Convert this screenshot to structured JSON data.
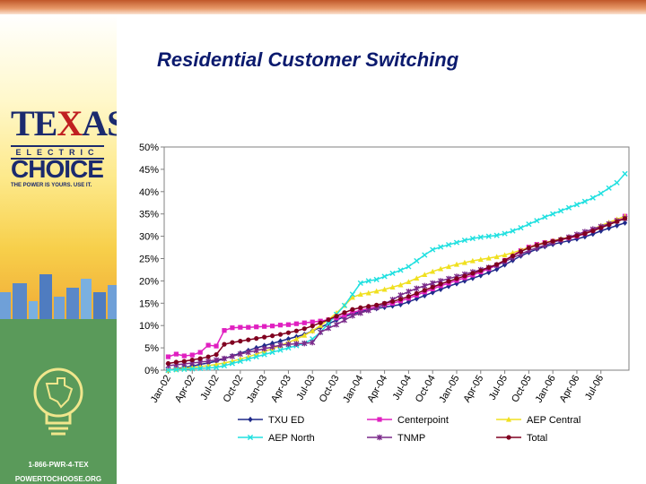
{
  "page": {
    "title": "Residential Customer Switching"
  },
  "sidebar": {
    "logo_texas_1": "TE",
    "logo_texas_x": "X",
    "logo_texas_2": "AS",
    "logo_electric": "ELECTRIC",
    "logo_choice": "CHOICE",
    "logo_tagline": "THE POWER IS YOURS. USE IT.",
    "phone": "1-866-PWR-4-TEX",
    "website": "POWERTOCHOOSE.ORG"
  },
  "chart_data": {
    "type": "line",
    "title": "Residential Customer Switching",
    "xlabel": "",
    "ylabel": "",
    "ylim": [
      0,
      50
    ],
    "y_ticks": [
      "0%",
      "5%",
      "10%",
      "15%",
      "20%",
      "25%",
      "30%",
      "35%",
      "40%",
      "45%",
      "50%"
    ],
    "y_tick_values": [
      0,
      5,
      10,
      15,
      20,
      25,
      30,
      35,
      40,
      45,
      50
    ],
    "categories": [
      "Jan-02",
      "Feb-02",
      "Mar-02",
      "Apr-02",
      "May-02",
      "Jun-02",
      "Jul-02",
      "Aug-02",
      "Sep-02",
      "Oct-02",
      "Nov-02",
      "Dec-02",
      "Jan-03",
      "Feb-03",
      "Mar-03",
      "Apr-03",
      "May-03",
      "Jun-03",
      "Jul-03",
      "Aug-03",
      "Sep-03",
      "Oct-03",
      "Nov-03",
      "Dec-03",
      "Jan-04",
      "Feb-04",
      "Mar-04",
      "Apr-04",
      "May-04",
      "Jun-04",
      "Jul-04",
      "Aug-04",
      "Sep-04",
      "Oct-04",
      "Nov-04",
      "Dec-04",
      "Jan-05",
      "Feb-05",
      "Mar-05",
      "Apr-05",
      "May-05",
      "Jun-05",
      "Jul-05",
      "Aug-05",
      "Sep-05",
      "Oct-05",
      "Nov-05",
      "Dec-05",
      "Jan-06",
      "Feb-06",
      "Mar-06",
      "Apr-06",
      "May-06",
      "Jun-06",
      "Jul-06",
      "Aug-06",
      "Sep-06",
      "Oct-06"
    ],
    "x_tick_labels": [
      "Jan-02",
      "Apr-02",
      "Jul-02",
      "Oct-02",
      "Jan-03",
      "Apr-03",
      "Jul-03",
      "Oct-03",
      "Jan-04",
      "Apr-04",
      "Jul-04",
      "Oct-04",
      "Jan-05",
      "Apr-05",
      "Jul-05",
      "Oct-05",
      "Jan-06",
      "Apr-06",
      "Jul-06"
    ],
    "legend_position": "bottom",
    "grid": false,
    "series": [
      {
        "name": "TXU ED",
        "color": "#1f2a8a",
        "marker": "diamond",
        "values": [
          0,
          0.3,
          0.6,
          0.9,
          1.3,
          1.6,
          2,
          2.6,
          3.2,
          3.8,
          4.4,
          5,
          5.5,
          6,
          6.5,
          7,
          7.5,
          8,
          8.8,
          9.6,
          10.4,
          11.2,
          12,
          12.6,
          13.1,
          13.5,
          13.8,
          14.1,
          14.4,
          14.7,
          15.3,
          16,
          16.7,
          17.4,
          18.1,
          18.8,
          19.4,
          20,
          20.6,
          21.2,
          21.9,
          22.6,
          23.6,
          24.6,
          25.6,
          26.4,
          27.1,
          27.7,
          28.2,
          28.6,
          29,
          29.4,
          29.9,
          30.5,
          31.2,
          31.8,
          32.4,
          33
        ]
      },
      {
        "name": "Centerpoint",
        "color": "#e020c0",
        "marker": "square",
        "values": [
          3,
          3.6,
          3.2,
          3.4,
          4,
          5.6,
          5.4,
          8.9,
          9.5,
          9.6,
          9.6,
          9.7,
          9.8,
          9.9,
          10.1,
          10.2,
          10.4,
          10.6,
          10.8,
          11,
          11.3,
          11.7,
          12.3,
          12.9,
          13.4,
          13.8,
          14.2,
          14.6,
          15,
          15.5,
          16.1,
          16.8,
          17.5,
          18.2,
          18.9,
          19.5,
          20.1,
          20.7,
          21.3,
          22,
          22.7,
          23.5,
          24.6,
          25.7,
          26.8,
          27.6,
          28.2,
          28.6,
          28.9,
          29.2,
          29.6,
          30,
          30.6,
          31.3,
          32,
          32.8,
          33.6,
          34.5
        ]
      },
      {
        "name": "AEP Central",
        "color": "#f0e020",
        "marker": "triangle",
        "values": [
          0,
          0.2,
          0.4,
          0.6,
          0.8,
          1,
          1.3,
          1.6,
          2,
          2.5,
          3,
          3.6,
          4.2,
          4.8,
          5.5,
          6.2,
          7,
          7.8,
          8.8,
          10,
          11.3,
          12.8,
          14.5,
          16.3,
          17,
          17.3,
          17.7,
          18.1,
          18.6,
          19.1,
          19.8,
          20.6,
          21.4,
          22.1,
          22.7,
          23.2,
          23.7,
          24.1,
          24.5,
          24.8,
          25.1,
          25.4,
          25.8,
          26.3,
          26.9,
          27.5,
          28.1,
          28.6,
          29,
          29.4,
          29.8,
          30.3,
          30.9,
          31.6,
          32.4,
          33.1,
          33.8,
          34.5
        ]
      },
      {
        "name": "AEP North",
        "color": "#20e0e0",
        "marker": "x",
        "values": [
          0,
          0.1,
          0.2,
          0.3,
          0.4,
          0.5,
          0.6,
          1,
          1.5,
          2,
          2.5,
          3,
          3.5,
          4,
          4.5,
          5,
          5.5,
          6,
          7,
          8.5,
          10.5,
          12.5,
          14.5,
          17,
          19.5,
          20,
          20.3,
          21,
          21.7,
          22.4,
          23.2,
          24.5,
          25.8,
          27,
          27.6,
          28.1,
          28.6,
          29.1,
          29.5,
          29.8,
          30,
          30.2,
          30.6,
          31.2,
          31.9,
          32.7,
          33.5,
          34.3,
          35,
          35.7,
          36.4,
          37.1,
          37.8,
          38.6,
          39.6,
          40.8,
          42,
          44
        ]
      },
      {
        "name": "TNMP",
        "color": "#7a2a8a",
        "marker": "asterisk",
        "values": [
          1,
          1.2,
          1.4,
          1.6,
          1.8,
          2,
          2.3,
          2.6,
          3.1,
          3.6,
          4,
          4.4,
          4.8,
          5.2,
          5.6,
          5.8,
          5.9,
          6,
          6.2,
          8.5,
          9.4,
          10.2,
          11.2,
          12.2,
          12.8,
          13.4,
          14,
          14.8,
          15.8,
          16.8,
          17.6,
          18.3,
          18.9,
          19.5,
          20,
          20.5,
          21,
          21.5,
          22,
          22.5,
          23,
          23.5,
          24.3,
          25.2,
          26,
          26.8,
          27.4,
          28,
          28.6,
          29.2,
          29.8,
          30.4,
          31,
          31.6,
          32.2,
          32.8,
          33.4,
          34
        ]
      },
      {
        "name": "Total",
        "color": "#800020",
        "marker": "circle",
        "values": [
          1.5,
          1.8,
          2,
          2.3,
          2.6,
          3,
          3.5,
          5.8,
          6.2,
          6.5,
          6.8,
          7.1,
          7.4,
          7.7,
          8,
          8.4,
          8.8,
          9.3,
          9.9,
          10.6,
          11.3,
          12.1,
          12.9,
          13.6,
          14,
          14.3,
          14.6,
          15,
          15.4,
          15.9,
          16.5,
          17.2,
          17.9,
          18.6,
          19.3,
          19.9,
          20.5,
          21.1,
          21.7,
          22.3,
          23,
          23.7,
          24.6,
          25.6,
          26.6,
          27.4,
          28,
          28.5,
          28.9,
          29.3,
          29.7,
          30.1,
          30.6,
          31.2,
          31.9,
          32.6,
          33.3,
          34
        ]
      }
    ]
  }
}
